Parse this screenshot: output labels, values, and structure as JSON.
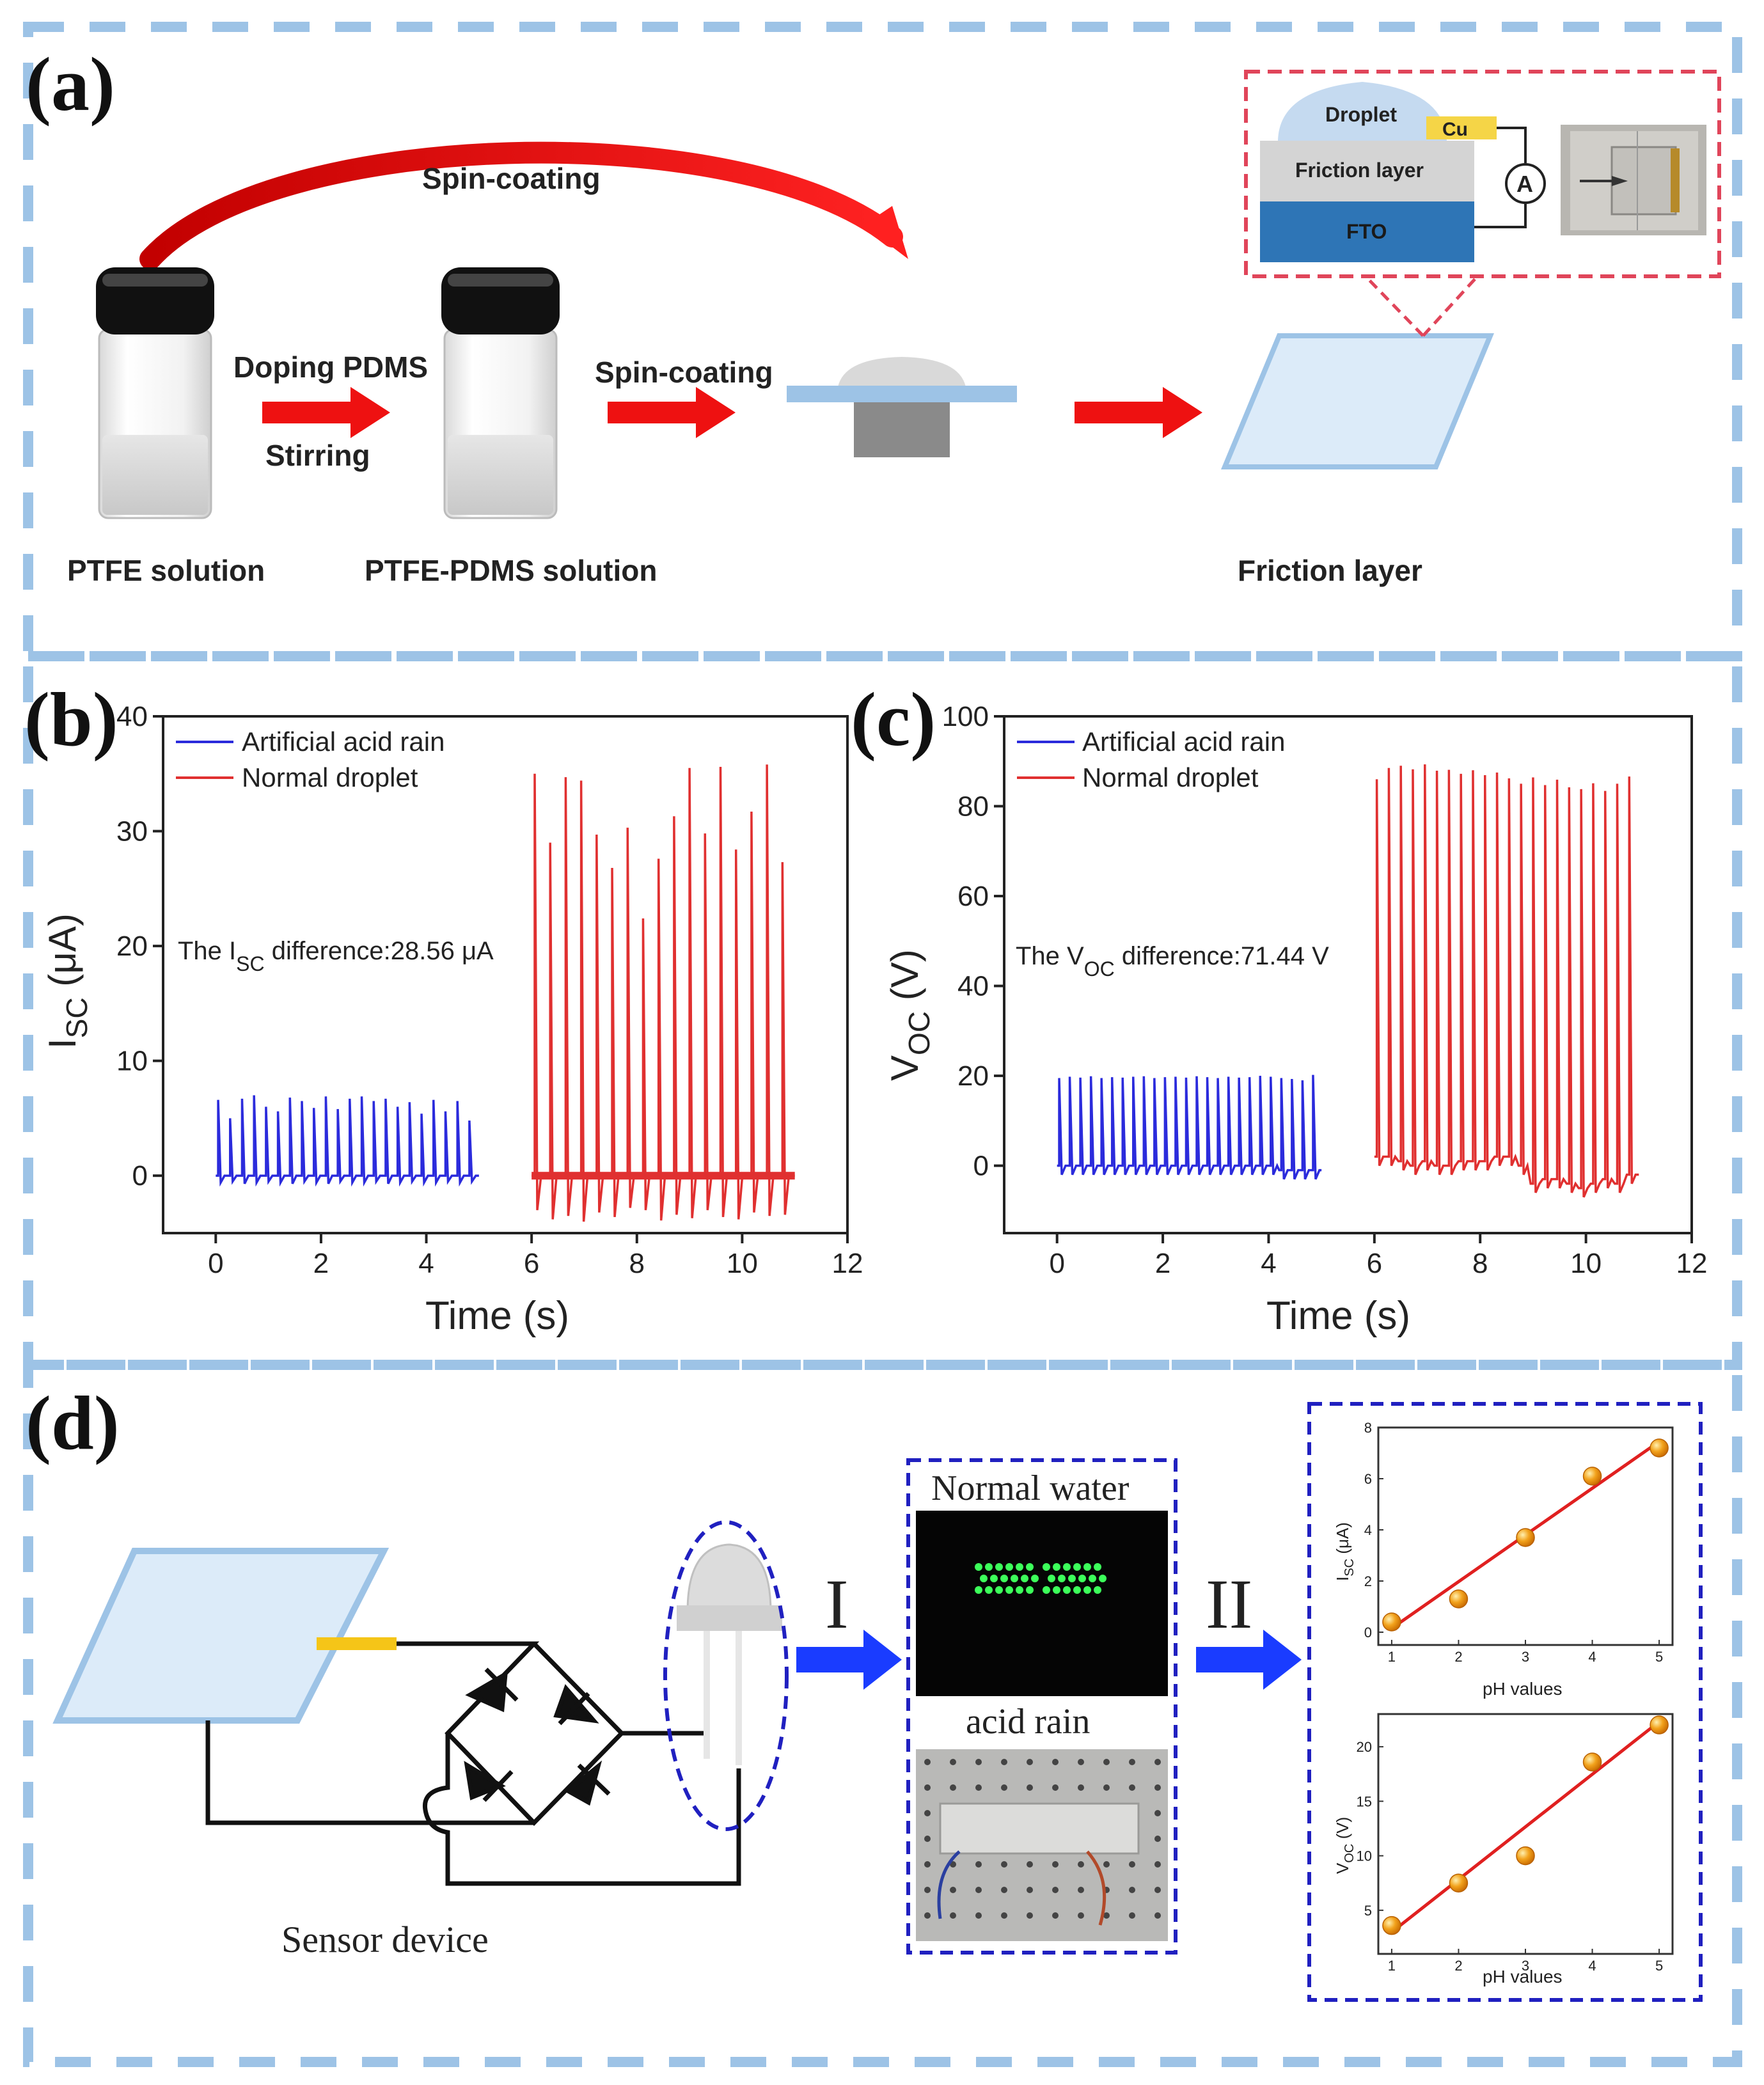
{
  "panel_a": {
    "label": "(a)",
    "spin_coating_top": "Spin-coating",
    "doping_pdms": "Doping PDMS",
    "stirring": "Stirring",
    "spin_coating_mid": "Spin-coating",
    "ptfe_solution": "PTFE solution",
    "ptfe_pdms_solution": "PTFE-PDMS solution",
    "friction_layer_caption": "Friction layer",
    "inset": {
      "droplet": "Droplet",
      "cu": "Cu",
      "friction_layer": "Friction layer",
      "fto": "FTO",
      "ammeter": "A"
    }
  },
  "panel_b": {
    "label": "(b)",
    "legend_blue": "Artificial acid rain",
    "legend_red": "Normal droplet",
    "annotation_prefix": "The I",
    "annotation_sub": "SC",
    "annotation_suffix": " difference:28.56 μA",
    "ylabel_main": "I",
    "ylabel_sub": "SC",
    "ylabel_unit": " (μA)",
    "xlabel": "Time (s)"
  },
  "panel_c": {
    "label": "(c)",
    "legend_blue": "Artificial acid rain",
    "legend_red": "Normal droplet",
    "annotation_prefix": "The V",
    "annotation_sub": "OC",
    "annotation_suffix": " difference:71.44 V",
    "ylabel_main": "V",
    "ylabel_sub": "OC",
    "ylabel_unit": " (V)",
    "xlabel": "Time (s)"
  },
  "panel_d": {
    "label": "(d)",
    "sensor_device": "Sensor device",
    "arrow_1": "I",
    "arrow_2": "II",
    "normal_water": "Normal water",
    "acid_rain": "acid rain",
    "inset_isc_ylabel": "I",
    "inset_isc_ylabel_sub": "SC",
    "inset_isc_ylabel_unit": " (μA)",
    "inset_voc_ylabel": "V",
    "inset_voc_ylabel_sub": "OC",
    "inset_voc_ylabel_unit": " (V)",
    "inset_xlabel_top": "pH values",
    "inset_xlabel_bottom": "pH values"
  },
  "colors": {
    "blue_trace": "#2b2bdc",
    "red_trace": "#e03030",
    "dash_border": "#9dc3e6",
    "arrow_red": "#ee1111",
    "arrow_blue": "#1a3cff",
    "inset_border": "#2020c0",
    "red_dash": "#e0455a"
  },
  "chart_data": [
    {
      "type": "line",
      "title": "",
      "xlabel": "Time (s)",
      "ylabel": "ISC (μA)",
      "xlim": [
        -1,
        12
      ],
      "ylim": [
        -5,
        40
      ],
      "xticks": [
        0,
        2,
        4,
        6,
        8,
        10,
        12
      ],
      "yticks": [
        0,
        10,
        20,
        30,
        40
      ],
      "series": [
        {
          "name": "Artificial acid rain",
          "color": "#2b2bdc",
          "x_range": [
            0,
            5
          ],
          "baseline": 0,
          "peaks": [
            6.6,
            5.0,
            6.7,
            7.0,
            6.0,
            5.6,
            6.8,
            6.5,
            5.9,
            6.9,
            5.8,
            6.7,
            6.9,
            6.5,
            6.7,
            6.0,
            6.4,
            5.4,
            6.6,
            5.6,
            6.5,
            4.8
          ],
          "neg_peaks": [
            -0.6,
            -0.5,
            -0.7,
            -0.6,
            -0.5,
            -0.6,
            -0.7,
            -0.5,
            -0.6,
            -0.7,
            -0.5,
            -0.6,
            -0.6,
            -0.5,
            -0.7,
            -0.6,
            -0.5,
            -0.6,
            -0.6,
            -0.5,
            -0.6,
            -0.5
          ]
        },
        {
          "name": "Normal droplet",
          "color": "#e03030",
          "x_range": [
            6,
            11
          ],
          "baseline": 0,
          "peaks": [
            35.0,
            29.0,
            34.7,
            34.4,
            29.7,
            26.8,
            30.3,
            22.4,
            27.6,
            31.3,
            35.5,
            29.8,
            35.6,
            28.4,
            31.7,
            35.8,
            27.3
          ],
          "neg_peaks": [
            -3.0,
            -3.8,
            -3.5,
            -4.0,
            -3.2,
            -3.6,
            -2.8,
            -3.0,
            -3.9,
            -3.4,
            -3.7,
            -3.0,
            -3.6,
            -3.8,
            -3.2,
            -3.5,
            -3.4
          ]
        }
      ],
      "annotations": [
        "The ISC difference:28.56 μA"
      ]
    },
    {
      "type": "line",
      "title": "",
      "xlabel": "Time (s)",
      "ylabel": "VOC (V)",
      "xlim": [
        -1,
        12
      ],
      "ylim": [
        -15,
        100
      ],
      "xticks": [
        0,
        2,
        4,
        6,
        8,
        10,
        12
      ],
      "yticks": [
        0,
        20,
        40,
        60,
        80,
        100
      ],
      "series": [
        {
          "name": "Artificial acid rain",
          "color": "#2b2bdc",
          "x_range": [
            0,
            5
          ],
          "baseline": 0,
          "peaks": [
            19.5,
            19.8,
            19.6,
            19.9,
            19.5,
            19.7,
            19.6,
            19.8,
            19.9,
            19.5,
            19.7,
            19.8,
            19.6,
            19.9,
            19.7,
            19.5,
            19.8,
            19.6,
            19.7,
            20.0,
            19.8,
            19.5,
            19.3,
            19.0,
            20.2
          ],
          "baseline_steps": [
            0,
            0,
            0,
            0,
            0,
            0,
            0,
            0,
            0,
            0,
            0,
            0,
            0,
            0,
            0,
            0,
            0,
            0,
            0,
            0,
            0,
            -1,
            -1,
            -1,
            -1
          ]
        },
        {
          "name": "Normal droplet",
          "color": "#e03030",
          "x_range": [
            6,
            11
          ],
          "baseline": 2,
          "peaks": [
            86.0,
            88.5,
            89.0,
            88.2,
            89.3,
            87.9,
            88.1,
            87.2,
            88.0,
            86.9,
            87.5,
            86.2,
            85.0,
            86.4,
            84.7,
            85.9,
            84.2,
            83.8,
            85.1,
            83.4,
            85.0,
            86.6
          ],
          "baseline_steps": [
            2,
            2,
            1,
            0,
            1,
            0,
            0,
            1,
            1,
            1,
            2,
            2,
            0,
            -4,
            -3,
            -3,
            -4,
            -5,
            -4,
            -3,
            -4,
            -2
          ]
        }
      ],
      "annotations": [
        "The VOC difference:71.44 V"
      ]
    },
    {
      "type": "scatter",
      "title": "",
      "xlabel": "pH values",
      "ylabel": "ISC (μA)",
      "xlim": [
        0.8,
        5.2
      ],
      "ylim": [
        -0.5,
        8
      ],
      "xticks": [
        1,
        2,
        3,
        4,
        5
      ],
      "yticks": [
        0,
        2,
        4,
        6,
        8
      ],
      "points": {
        "x": [
          1,
          2,
          3,
          4,
          5
        ],
        "y": [
          0.4,
          1.3,
          3.7,
          6.1,
          7.2
        ]
      },
      "fit_line": {
        "x": [
          1,
          5
        ],
        "y": [
          0.15,
          7.45
        ]
      }
    },
    {
      "type": "scatter",
      "title": "",
      "xlabel": "pH values",
      "ylabel": "VOC (V)",
      "xlim": [
        0.8,
        5.2
      ],
      "ylim": [
        1,
        23
      ],
      "xticks": [
        1,
        2,
        3,
        4,
        5
      ],
      "yticks": [
        5,
        10,
        15,
        20
      ],
      "points": {
        "x": [
          1,
          2,
          3,
          4,
          5
        ],
        "y": [
          3.6,
          7.5,
          10.0,
          18.6,
          22.0
        ]
      },
      "fit_line": {
        "x": [
          1,
          5
        ],
        "y": [
          3.0,
          22.3
        ]
      }
    }
  ]
}
